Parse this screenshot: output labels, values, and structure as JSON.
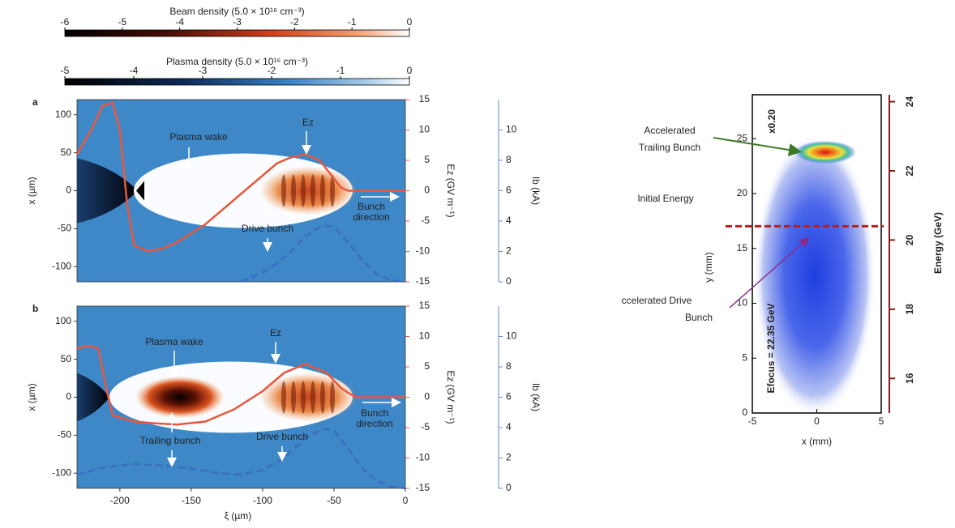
{
  "chart_data": [
    {
      "type": "colorbar",
      "title": "Beam density (5.0 × 10¹⁶ cm⁻³)",
      "xlim": [
        -6,
        0
      ],
      "xticks": [
        -6,
        -5,
        -4,
        -3,
        -2,
        -1,
        0
      ]
    },
    {
      "type": "colorbar",
      "title": "Plasma density (5.0 × 10¹⁶ cm⁻³)",
      "xlim": [
        -5,
        0
      ],
      "xticks": [
        -5,
        -4,
        -3,
        -2,
        -1,
        0
      ]
    },
    {
      "type": "line",
      "label": "a",
      "xlim": [
        -230,
        0
      ],
      "ylim": [
        -120,
        120
      ],
      "yticks": [
        -100,
        -50,
        0,
        50,
        100
      ],
      "ylabel": "x (µm)",
      "y2lim": [
        -15,
        15
      ],
      "y2ticks": [
        -15,
        -10,
        -5,
        0,
        5,
        10,
        15
      ],
      "y2label": "Ez (GV m⁻¹)",
      "y3lim": [
        0,
        12
      ],
      "y3ticks": [
        0,
        2,
        4,
        6,
        8,
        10
      ],
      "y3label": "Ib (kA)",
      "series": [
        {
          "axis": "y2",
          "color": "#e8573c",
          "dash": false,
          "x": [
            -230,
            -220,
            -212,
            -205,
            -200,
            -195,
            -190,
            -180,
            -170,
            -160,
            -150,
            -140,
            -130,
            -120,
            -110,
            -100,
            -90,
            -80,
            -70,
            -60,
            -50,
            -45,
            -40,
            -30,
            -20,
            -10,
            0
          ],
          "values": [
            6,
            10,
            14,
            14.5,
            10,
            -2,
            -9,
            -10,
            -9.5,
            -8.5,
            -7,
            -5.5,
            -3.5,
            -1.5,
            0.5,
            2.5,
            4.5,
            5.5,
            6,
            5,
            2,
            0.5,
            0,
            0,
            0,
            0,
            0
          ]
        },
        {
          "axis": "y3",
          "color": "#3a6cc0",
          "dash": true,
          "x": [
            -115,
            -100,
            -90,
            -80,
            -70,
            -60,
            -55,
            -50,
            -40,
            -30,
            -20,
            -10,
            0
          ],
          "values": [
            0,
            0.6,
            1.2,
            2.0,
            3.0,
            3.6,
            3.7,
            3.6,
            2.6,
            1.4,
            0.5,
            0.1,
            0
          ]
        }
      ],
      "annotations": [
        [
          "Plasma wake"
        ],
        [
          "Ez"
        ],
        [
          "Drive bunch"
        ],
        [
          "Bunch",
          "direction"
        ]
      ]
    },
    {
      "type": "line",
      "label": "b",
      "xlim": [
        -230,
        0
      ],
      "xticks": [
        -200,
        -150,
        -100,
        -50,
        0
      ],
      "xlabel": "ξ (µm)",
      "ylim": [
        -120,
        120
      ],
      "yticks": [
        -100,
        -50,
        0,
        50,
        100
      ],
      "ylabel": "x (µm)",
      "y2lim": [
        -15,
        15
      ],
      "y2ticks": [
        -15,
        -10,
        -5,
        0,
        5,
        10,
        15
      ],
      "y2label": "Ez (GV m⁻¹)",
      "y3lim": [
        0,
        12
      ],
      "y3ticks": [
        0,
        2,
        4,
        6,
        8,
        10
      ],
      "y3label": "Ib (kA)",
      "series": [
        {
          "axis": "y2",
          "color": "#e8573c",
          "dash": false,
          "x": [
            -230,
            -222,
            -215,
            -210,
            -205,
            -190,
            -175,
            -160,
            -140,
            -120,
            -100,
            -85,
            -70,
            -55,
            -45,
            -35,
            -20,
            0
          ],
          "values": [
            8,
            8.5,
            8,
            2,
            -3,
            -4,
            -4.3,
            -4.5,
            -4,
            -2,
            1,
            4,
            5.5,
            4,
            1.5,
            0,
            0,
            0
          ]
        },
        {
          "axis": "y3",
          "color": "#3a6cc0",
          "dash": true,
          "x": [
            -230,
            -210,
            -190,
            -170,
            -150,
            -130,
            -115,
            -100,
            -85,
            -70,
            -60,
            -55,
            -50,
            -40,
            -30,
            -20,
            -10,
            0
          ],
          "values": [
            0.9,
            1.4,
            1.6,
            1.5,
            1.3,
            1.0,
            0.9,
            1.2,
            2.0,
            3.3,
            3.8,
            3.9,
            3.8,
            2.6,
            1.3,
            0.5,
            0.1,
            0
          ]
        }
      ],
      "annotations": [
        [
          "Plasma wake"
        ],
        [
          "Ez"
        ],
        [
          "Trailing bunch"
        ],
        [
          "Drive bunch"
        ],
        [
          "Bunch",
          "direction"
        ]
      ]
    },
    {
      "type": "image",
      "xlim": [
        -5,
        5
      ],
      "xticks": [
        -5,
        0,
        5
      ],
      "xlabel": "x (mm)",
      "ylim": [
        0,
        29
      ],
      "yticks": [
        0,
        5,
        10,
        15,
        20,
        25
      ],
      "ylabel": "y (mm)",
      "y2lim": [
        15,
        24.2
      ],
      "y2ticks": [
        16,
        18,
        20,
        22,
        24
      ],
      "y2label": "Energy (GeV)",
      "initial_energy": 20.4,
      "annotations": [
        [
          "x0.20"
        ],
        [
          "Accelerated",
          "Trailing Bunch"
        ],
        [
          "Initial Energy"
        ],
        [
          "ccelerated Drive",
          "Bunch"
        ],
        [
          "Efocus = 22.35 GeV"
        ]
      ]
    }
  ]
}
